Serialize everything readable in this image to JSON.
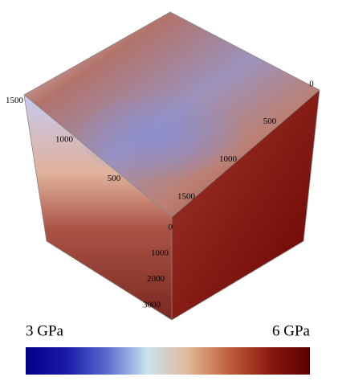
{
  "chart_data": {
    "type": "volume",
    "axes": [
      {
        "ticks": [
          500,
          1000,
          1500
        ]
      },
      {
        "ticks": [
          0,
          500,
          1000,
          1500
        ]
      },
      {
        "ticks": [
          0,
          1000,
          2000,
          3000
        ]
      }
    ],
    "colorbar": {
      "lim": [
        3,
        6
      ],
      "ticks": [
        {
          "value": 3,
          "label": "3 GPa"
        },
        {
          "value": 6,
          "label": "6 GPa"
        }
      ],
      "colors": [
        "#00008b",
        "#1a1aa8",
        "#5a6ad0",
        "#c8e4ee",
        "#e0b898",
        "#c0603a",
        "#8b1a10",
        "#5a0000"
      ]
    }
  }
}
